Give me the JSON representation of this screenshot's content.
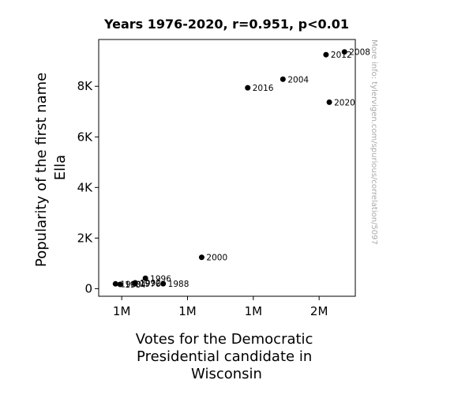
{
  "chart_data": {
    "type": "scatter",
    "title": "Years 1976-2020, r=0.951, p<0.01",
    "xlabel_lines": [
      "Votes for the Democratic",
      "Presidential candidate in",
      "Wisconsin"
    ],
    "ylabel_lines": [
      "Popularity of the first name",
      "Ella"
    ],
    "watermark": "More info: tylervigen.com/spurious/correlation/5097",
    "xlim": [
      930000,
      1710000
    ],
    "ylim": [
      -300,
      9850
    ],
    "x_ticks": [
      {
        "value": 1000000,
        "label": "1M"
      },
      {
        "value": 1200000,
        "label": "1M"
      },
      {
        "value": 1400000,
        "label": "1M"
      },
      {
        "value": 1600000,
        "label": "2M"
      }
    ],
    "y_ticks": [
      {
        "value": 0,
        "label": "0"
      },
      {
        "value": 2000,
        "label": "2K"
      },
      {
        "value": 4000,
        "label": "4K"
      },
      {
        "value": 6000,
        "label": "6K"
      },
      {
        "value": 8000,
        "label": "8K"
      }
    ],
    "points": [
      {
        "label": "1976",
        "x": 1040000,
        "y": 200
      },
      {
        "label": "1980",
        "x": 981000,
        "y": 190
      },
      {
        "label": "1984",
        "x": 995000,
        "y": 170
      },
      {
        "label": "1988",
        "x": 1126000,
        "y": 195
      },
      {
        "label": "1992",
        "x": 1041000,
        "y": 230
      },
      {
        "label": "1996",
        "x": 1072000,
        "y": 410
      },
      {
        "label": "2000",
        "x": 1243000,
        "y": 1240
      },
      {
        "label": "2004",
        "x": 1490000,
        "y": 8280
      },
      {
        "label": "2008",
        "x": 1677000,
        "y": 9360
      },
      {
        "label": "2012",
        "x": 1621000,
        "y": 9250
      },
      {
        "label": "2016",
        "x": 1383000,
        "y": 7940
      },
      {
        "label": "2020",
        "x": 1631000,
        "y": 7370
      }
    ]
  }
}
